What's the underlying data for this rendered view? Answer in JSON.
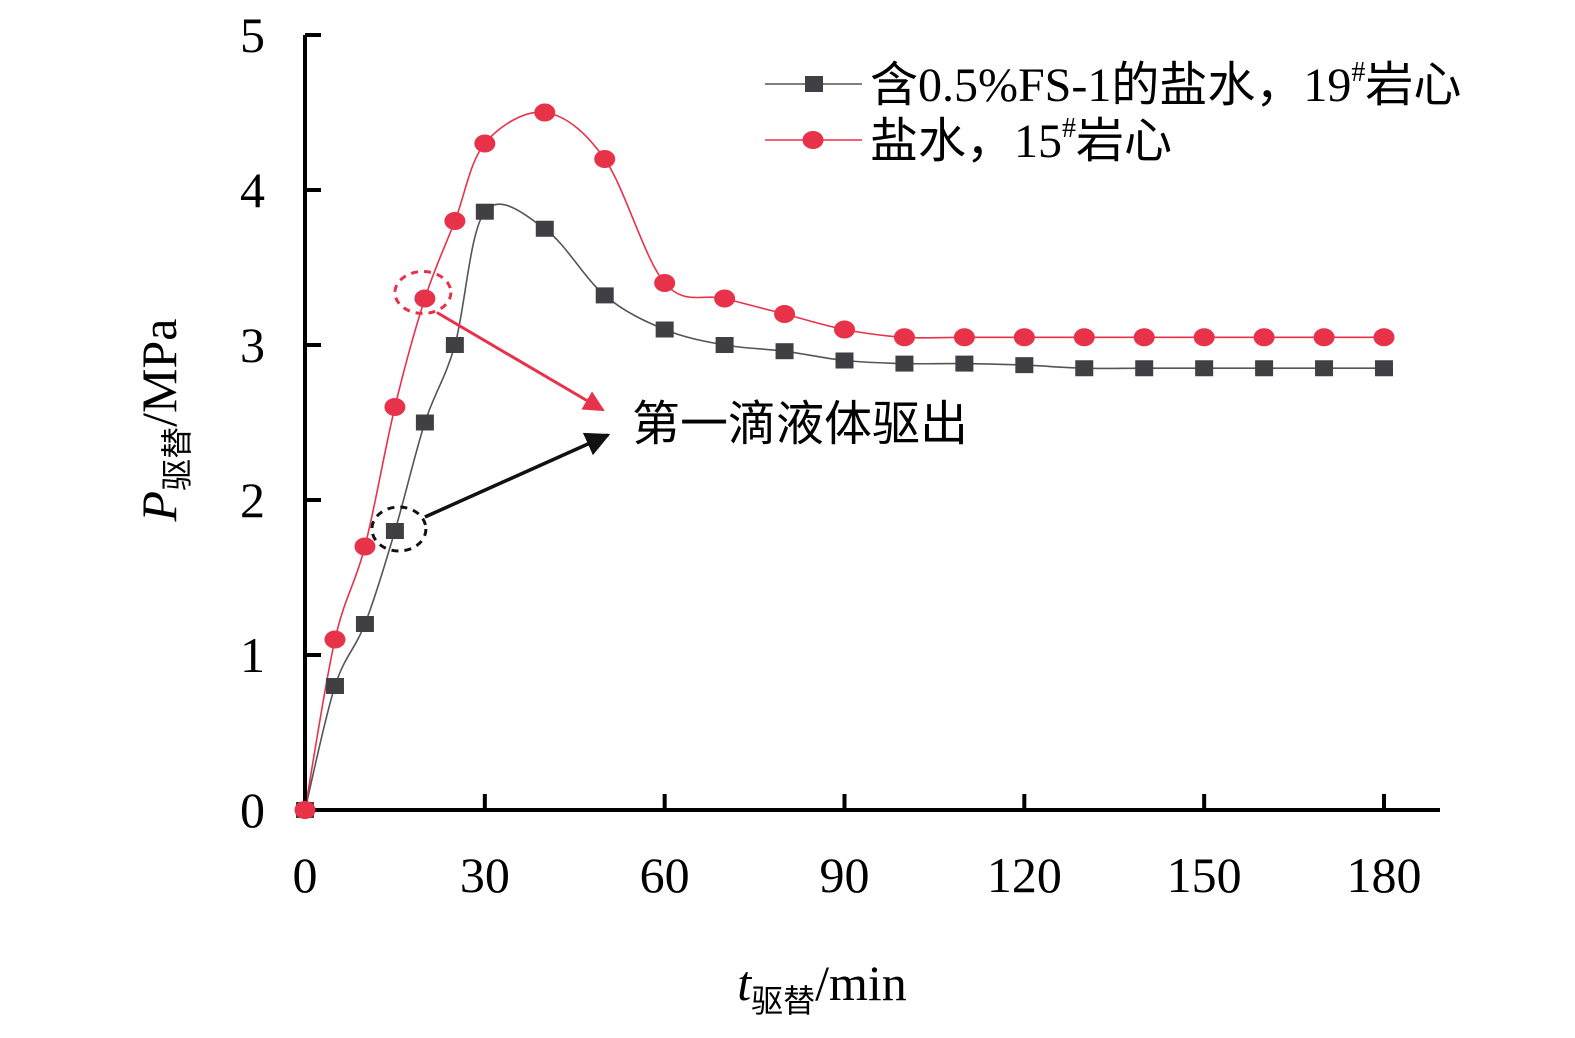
{
  "chart_data": {
    "type": "line",
    "xlabel": {
      "main": "t",
      "sub": "驱替",
      "unit": "/min"
    },
    "ylabel": {
      "main": "P",
      "sub": "驱替",
      "unit": "/MPa"
    },
    "xlim": [
      0,
      190
    ],
    "ylim": [
      0,
      5
    ],
    "xticks": [
      0,
      30,
      60,
      90,
      120,
      150,
      180
    ],
    "yticks": [
      0,
      1,
      2,
      3,
      4,
      5
    ],
    "grid": false,
    "legend_position": "top-right",
    "series": [
      {
        "name": "含0.5%FS-1的盐水，19#岩心",
        "legend_parts": {
          "before": "含0.5%FS-1的盐水，19",
          "sup": "#",
          "after": "岩心"
        },
        "color": "#3f3f44",
        "line_color": "#555555",
        "marker": "square",
        "x": [
          0,
          5,
          10,
          15,
          20,
          25,
          30,
          40,
          50,
          60,
          70,
          80,
          90,
          100,
          110,
          120,
          130,
          140,
          150,
          160,
          170,
          180
        ],
        "y": [
          0,
          0.8,
          1.2,
          1.8,
          2.5,
          3.0,
          3.86,
          3.75,
          3.32,
          3.1,
          3.0,
          2.96,
          2.9,
          2.88,
          2.88,
          2.87,
          2.85,
          2.85,
          2.85,
          2.85,
          2.85,
          2.85
        ]
      },
      {
        "name": "盐水，15#岩心",
        "legend_parts": {
          "before": "盐水，15",
          "sup": "#",
          "after": "岩心"
        },
        "color": "#e8324a",
        "line_color": "#e8324a",
        "marker": "circle",
        "x": [
          0,
          5,
          10,
          15,
          20,
          25,
          30,
          40,
          50,
          60,
          70,
          80,
          90,
          100,
          110,
          120,
          130,
          140,
          150,
          160,
          170,
          180
        ],
        "y": [
          0,
          1.1,
          1.7,
          2.6,
          3.3,
          3.8,
          4.3,
          4.5,
          4.2,
          3.4,
          3.3,
          3.2,
          3.1,
          3.05,
          3.05,
          3.05,
          3.05,
          3.05,
          3.05,
          3.05,
          3.05,
          3.05
        ]
      }
    ],
    "annotations": [
      {
        "text": "第一滴液体驱出",
        "targets": [
          {
            "series": 1,
            "x": 20,
            "y": 3.3,
            "color": "#e8324a"
          },
          {
            "series": 0,
            "x": 15,
            "y": 1.8,
            "color": "#111111"
          }
        ]
      }
    ]
  }
}
